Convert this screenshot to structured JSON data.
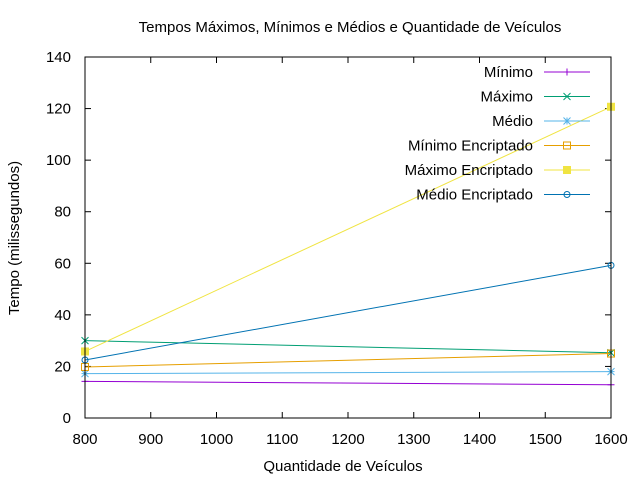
{
  "chart_data": {
    "type": "line",
    "title": "Tempos Máximos, Mínimos e Médios e Quantidade de Veículos",
    "xlabel": "Quantidade de Veículos",
    "ylabel": "Tempo (milissegundos)",
    "xlim": [
      800,
      1600
    ],
    "ylim": [
      0,
      140
    ],
    "xticks": [
      800,
      900,
      1000,
      1100,
      1200,
      1300,
      1400,
      1500,
      1600
    ],
    "yticks": [
      0,
      20,
      40,
      60,
      80,
      100,
      120,
      140
    ],
    "grid": false,
    "legend_position": "top-right",
    "x": [
      800,
      1600
    ],
    "series": [
      {
        "name": "Mínimo",
        "values": [
          14.2,
          12.9
        ],
        "color": "#9400d3",
        "marker": "plus"
      },
      {
        "name": "Máximo",
        "values": [
          30.0,
          25.3
        ],
        "color": "#009e73",
        "marker": "cross"
      },
      {
        "name": "Médio",
        "values": [
          17.2,
          18.0
        ],
        "color": "#56b4e9",
        "marker": "star"
      },
      {
        "name": "Mínimo Encriptado",
        "values": [
          19.8,
          25.0
        ],
        "color": "#e69f00",
        "marker": "open-square"
      },
      {
        "name": "Máximo Encriptado",
        "values": [
          25.8,
          120.7
        ],
        "color": "#f0e442",
        "marker": "filled-square"
      },
      {
        "name": "Médio Encriptado",
        "values": [
          22.5,
          59.2
        ],
        "color": "#0072b2",
        "marker": "open-circle"
      }
    ]
  }
}
